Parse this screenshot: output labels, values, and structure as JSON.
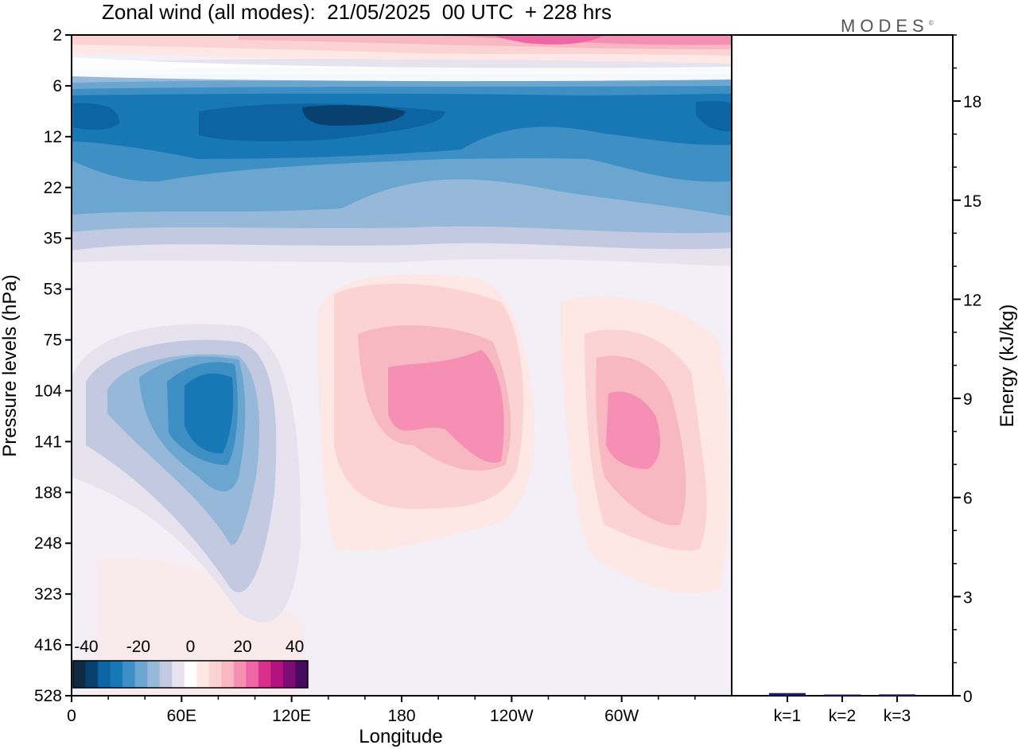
{
  "chart_data": [
    {
      "type": "heatmap",
      "title": "Zonal wind (all modes):  21/05/2025  00 UTC  + 228 hrs",
      "xlabel": "Longitude",
      "ylabel": "Pressure levels (hPa)",
      "x_ticks": [
        "0",
        "60E",
        "120E",
        "180",
        "120W",
        "60W"
      ],
      "x_tick_values": [
        0,
        60,
        120,
        180,
        240,
        300
      ],
      "xlim": [
        0,
        360
      ],
      "y_ticks": [
        "2",
        "6",
        "12",
        "22",
        "35",
        "53",
        "75",
        "104",
        "141",
        "188",
        "248",
        "323",
        "416",
        "528"
      ],
      "colorbar": {
        "labels": [
          "-40",
          "-20",
          "0",
          "20",
          "40"
        ],
        "range": [
          -45,
          45
        ],
        "colors": [
          "#0e2a44",
          "#08416e",
          "#0d64a3",
          "#1878b5",
          "#3d8fc4",
          "#6aa6d0",
          "#97b9d9",
          "#c3c9e1",
          "#e6e3ef",
          "#ffffff",
          "#fde8e6",
          "#fbd3d3",
          "#f8b8c1",
          "#f590b4",
          "#ee66a5",
          "#d9308e",
          "#b2117e",
          "#7c0b73",
          "#4a0960"
        ]
      },
      "features": [
        {
          "name": "upper-stratosphere-westerly",
          "lon": [
            140,
            360
          ],
          "level_top": 2,
          "level_bottom": 4,
          "max": 30
        },
        {
          "name": "stratospheric-easterly-jet",
          "lon": [
            0,
            360
          ],
          "level_top": 6,
          "level_bottom": 30,
          "min": -35
        },
        {
          "name": "eastern-hemisphere-tropopause-easterly",
          "lon": [
            10,
            110
          ],
          "level_top": 75,
          "level_bottom": 330,
          "min": -35
        },
        {
          "name": "pacific-westerly-1",
          "lon": [
            140,
            250
          ],
          "level_top": 50,
          "level_bottom": 330,
          "max": 20
        },
        {
          "name": "pacific-westerly-2",
          "lon": [
            270,
            360
          ],
          "level_top": 55,
          "level_bottom": 330,
          "max": 20
        }
      ]
    },
    {
      "type": "bar",
      "ylabel": "Energy (kJ/kg)",
      "categories": [
        "k=1",
        "k=2",
        "k=3"
      ],
      "values": [
        0.08,
        0.02,
        0.04
      ],
      "ylim": [
        0,
        20
      ],
      "y_ticks": [
        "0",
        "3",
        "6",
        "9",
        "12",
        "15",
        "18"
      ],
      "y_tick_values": [
        0,
        3,
        6,
        9,
        12,
        15,
        18
      ],
      "bar_color": "#1a1a6e"
    }
  ],
  "logo": {
    "text": "MODES",
    "mark": "©"
  }
}
